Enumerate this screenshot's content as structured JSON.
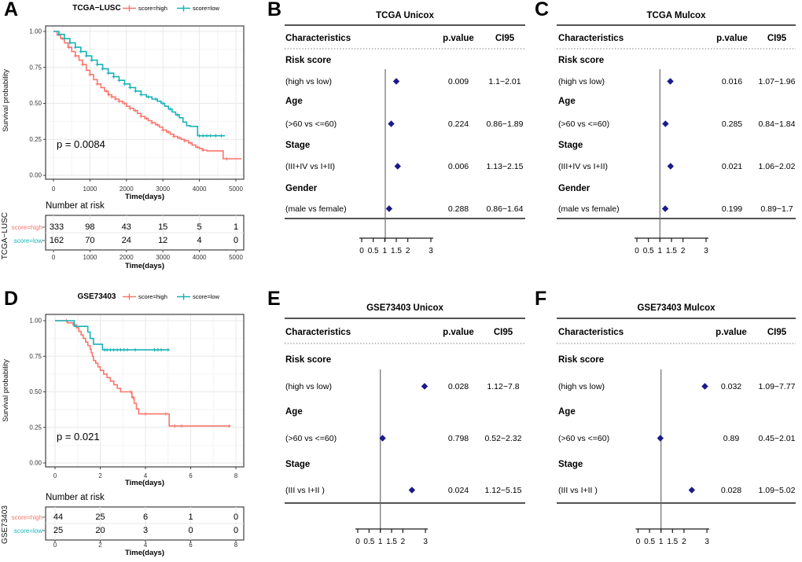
{
  "colors": {
    "score_high": "#F8766D",
    "score_low": "#17B3B7",
    "diamond": "#1A1A8C",
    "grid_major": "#E8E8E8",
    "grid_minor": "#F4F4F4",
    "panel_border": "#4D4D4D",
    "axis_text": "#333333"
  },
  "chart_data": {
    "note": "see km and forest arrays"
  },
  "km": [
    {
      "letter": "A",
      "title": "TCGA−LUSC",
      "legend": [
        {
          "label": "score=high"
        },
        {
          "label": "score=low"
        }
      ],
      "ylabel": "Survival probability",
      "xlabel": "Time(days)",
      "p_label": "p = 0.0084",
      "ytick_labels": [
        "1.00",
        "0.75",
        "0.50",
        "0.25",
        "0.00"
      ],
      "xtick_labels": [
        "0",
        "1000",
        "2000",
        "3000",
        "4000",
        "5000"
      ],
      "series": [
        {
          "name": "score=high",
          "steps": [
            [
              0,
              1
            ],
            [
              100,
              0.975
            ],
            [
              200,
              0.95
            ],
            [
              300,
              0.92
            ],
            [
              400,
              0.89
            ],
            [
              500,
              0.86
            ],
            [
              600,
              0.83
            ],
            [
              700,
              0.8
            ],
            [
              800,
              0.77
            ],
            [
              900,
              0.73
            ],
            [
              1000,
              0.7
            ],
            [
              1100,
              0.665
            ],
            [
              1200,
              0.635
            ],
            [
              1300,
              0.61
            ],
            [
              1400,
              0.585
            ],
            [
              1500,
              0.56
            ],
            [
              1600,
              0.545
            ],
            [
              1700,
              0.53
            ],
            [
              1800,
              0.515
            ],
            [
              1900,
              0.5
            ],
            [
              2000,
              0.48
            ],
            [
              2100,
              0.465
            ],
            [
              2200,
              0.45
            ],
            [
              2300,
              0.43
            ],
            [
              2400,
              0.41
            ],
            [
              2500,
              0.395
            ],
            [
              2600,
              0.38
            ],
            [
              2700,
              0.365
            ],
            [
              2800,
              0.35
            ],
            [
              2900,
              0.335
            ],
            [
              3000,
              0.315
            ],
            [
              3100,
              0.3
            ],
            [
              3200,
              0.285
            ],
            [
              3300,
              0.27
            ],
            [
              3400,
              0.26
            ],
            [
              3500,
              0.25
            ],
            [
              3600,
              0.24
            ],
            [
              3700,
              0.225
            ],
            [
              3800,
              0.21
            ],
            [
              3900,
              0.195
            ],
            [
              4000,
              0.185
            ],
            [
              4100,
              0.175
            ],
            [
              4200,
              0.17
            ],
            [
              4600,
              0.17
            ],
            [
              4650,
              0.115
            ],
            [
              5150,
              0.115
            ]
          ],
          "censors": [
            250,
            420,
            600,
            800,
            1000,
            1200,
            1450,
            1520,
            1600,
            1700,
            1800,
            1950,
            2100,
            2250,
            2400,
            2550,
            2700,
            2850,
            3000,
            3150,
            3300,
            3450,
            3600,
            3750,
            3950,
            4100,
            4750
          ]
        },
        {
          "name": "score=low",
          "steps": [
            [
              0,
              1
            ],
            [
              150,
              0.98
            ],
            [
              300,
              0.95
            ],
            [
              450,
              0.92
            ],
            [
              600,
              0.89
            ],
            [
              750,
              0.86
            ],
            [
              900,
              0.83
            ],
            [
              1050,
              0.8
            ],
            [
              1200,
              0.77
            ],
            [
              1350,
              0.74
            ],
            [
              1500,
              0.71
            ],
            [
              1650,
              0.685
            ],
            [
              1800,
              0.66
            ],
            [
              1950,
              0.635
            ],
            [
              2100,
              0.61
            ],
            [
              2250,
              0.585
            ],
            [
              2400,
              0.56
            ],
            [
              2550,
              0.545
            ],
            [
              2700,
              0.53
            ],
            [
              2850,
              0.515
            ],
            [
              2950,
              0.5
            ],
            [
              3050,
              0.48
            ],
            [
              3150,
              0.46
            ],
            [
              3250,
              0.44
            ],
            [
              3350,
              0.42
            ],
            [
              3450,
              0.4
            ],
            [
              3550,
              0.37
            ],
            [
              3650,
              0.345
            ],
            [
              3750,
              0.34
            ],
            [
              3900,
              0.34
            ],
            [
              3950,
              0.275
            ],
            [
              4700,
              0.275
            ]
          ],
          "censors": [
            150,
            300,
            450,
            600,
            750,
            900,
            1050,
            1200,
            1350,
            1500,
            1650,
            1800,
            1950,
            2100,
            2250,
            2400,
            2600,
            2800,
            3000,
            3200,
            3400,
            4000,
            4100,
            4200,
            4300,
            4450,
            4600
          ]
        }
      ],
      "risk_table": {
        "heading": "Number at risk",
        "group_label": "TCGA−LUSC",
        "xlabel": "Time(days)",
        "rows": [
          {
            "label": "score=high",
            "values": [
              333,
              98,
              43,
              15,
              5,
              1
            ]
          },
          {
            "label": "score=low",
            "values": [
              162,
              70,
              24,
              12,
              4,
              0
            ]
          }
        ]
      }
    },
    {
      "letter": "D",
      "title": "GSE73403",
      "legend": [
        {
          "label": "score=high"
        },
        {
          "label": "score=low"
        }
      ],
      "ylabel": "Survival probability",
      "xlabel": "Time(days)",
      "p_label": "p = 0.021",
      "ytick_labels": [
        "1.00",
        "0.75",
        "0.50",
        "0.25",
        "0.00"
      ],
      "xtick_labels": [
        "0",
        "2",
        "4",
        "6",
        "8"
      ],
      "series": [
        {
          "name": "score=high",
          "steps": [
            [
              0,
              1
            ],
            [
              0.55,
              0.985
            ],
            [
              0.8,
              0.97
            ],
            [
              0.95,
              0.95
            ],
            [
              1.05,
              0.925
            ],
            [
              1.15,
              0.9
            ],
            [
              1.25,
              0.875
            ],
            [
              1.35,
              0.85
            ],
            [
              1.45,
              0.825
            ],
            [
              1.55,
              0.8
            ],
            [
              1.6,
              0.775
            ],
            [
              1.65,
              0.75
            ],
            [
              1.7,
              0.72
            ],
            [
              1.8,
              0.7
            ],
            [
              1.9,
              0.675
            ],
            [
              2.0,
              0.65
            ],
            [
              2.15,
              0.625
            ],
            [
              2.3,
              0.6
            ],
            [
              2.45,
              0.575
            ],
            [
              2.6,
              0.55
            ],
            [
              2.75,
              0.525
            ],
            [
              2.9,
              0.5
            ],
            [
              3.3,
              0.5
            ],
            [
              3.4,
              0.46
            ],
            [
              3.5,
              0.42
            ],
            [
              3.6,
              0.38
            ],
            [
              3.7,
              0.345
            ],
            [
              5.0,
              0.345
            ],
            [
              5.05,
              0.26
            ],
            [
              7.75,
              0.26
            ]
          ],
          "censors": [
            0.5,
            0.85,
            3.35,
            3.45,
            4.0,
            4.9,
            5.3,
            5.6,
            7.7
          ]
        },
        {
          "name": "score=low",
          "steps": [
            [
              0,
              1
            ],
            [
              0.85,
              0.96
            ],
            [
              1.4,
              0.96
            ],
            [
              1.45,
              0.92
            ],
            [
              1.55,
              0.875
            ],
            [
              1.7,
              0.835
            ],
            [
              2.05,
              0.835
            ],
            [
              2.1,
              0.795
            ],
            [
              5.05,
              0.795
            ]
          ],
          "censors": [
            2.2,
            2.3,
            2.45,
            2.6,
            2.75,
            2.9,
            3.05,
            3.2,
            3.55,
            4.4,
            4.55,
            4.7,
            5.0
          ]
        }
      ],
      "risk_table": {
        "heading": "Number at risk",
        "group_label": "GSE73403",
        "xlabel": "Time(days)",
        "rows": [
          {
            "label": "score=high",
            "values": [
              44,
              25,
              6,
              1,
              0
            ]
          },
          {
            "label": "score=low",
            "values": [
              25,
              20,
              3,
              0,
              0
            ]
          }
        ]
      }
    }
  ],
  "forest": [
    {
      "letter": "B",
      "title": "TCGA Unicox",
      "columns": {
        "characteristics": "Characteristics",
        "p": "p.value",
        "ci": "CI95"
      },
      "axis_ticks": [
        "0",
        "0.5",
        "1",
        "1.5",
        "2",
        "3"
      ],
      "rows": [
        {
          "group": "Risk score",
          "item": "(high vs low)",
          "hr": 1.5,
          "p": "0.009",
          "ci": "1.1−2.01"
        },
        {
          "group": "Age",
          "item": "(>60 vs <=60)",
          "hr": 1.28,
          "p": "0.224",
          "ci": "0.86−1.89"
        },
        {
          "group": "Stage",
          "item": "(III+IV vs I+II)",
          "hr": 1.56,
          "p": "0.006",
          "ci": "1.13−2.15"
        },
        {
          "group": "Gender",
          "item": "(male vs female)",
          "hr": 1.19,
          "p": "0.288",
          "ci": "0.86−1.64"
        }
      ]
    },
    {
      "letter": "C",
      "title": "TCGA Mulcox",
      "columns": {
        "characteristics": "Characteristics",
        "p": "p.value",
        "ci": "CI95"
      },
      "axis_ticks": [
        "0",
        "0.5",
        "1",
        "1.5",
        "2",
        "3"
      ],
      "rows": [
        {
          "group": "Risk score",
          "item": "(high vs low)",
          "hr": 1.45,
          "p": "0.016",
          "ci": "1.07−1.96"
        },
        {
          "group": "Age",
          "item": "(>60 vs <=60)",
          "hr": 1.24,
          "p": "0.285",
          "ci": "0.84−1.84"
        },
        {
          "group": "Stage",
          "item": "(III+IV vs I+II)",
          "hr": 1.46,
          "p": "0.021",
          "ci": "1.06−2.02"
        },
        {
          "group": "Gender",
          "item": "(male vs female)",
          "hr": 1.23,
          "p": "0.199",
          "ci": "0.89−1.7"
        }
      ]
    },
    {
      "letter": "E",
      "title": "GSE73403 Unicox",
      "columns": {
        "characteristics": "Characteristics",
        "p": "p.value",
        "ci": "CI95"
      },
      "axis_ticks": [
        "0",
        "0.5",
        "1",
        "1.5",
        "2",
        "3"
      ],
      "rows": [
        {
          "group": "Risk score",
          "item": "(high vs low)",
          "hr": 2.96,
          "p": "0.028",
          "ci": "1.12−7.8"
        },
        {
          "group": "Age",
          "item": "(>60 vs <=60)",
          "hr": 1.1,
          "p": "0.798",
          "ci": "0.52−2.32"
        },
        {
          "group": "Stage",
          "item": "(III vs I+II )",
          "hr": 2.4,
          "p": "0.024",
          "ci": "1.12−5.15"
        }
      ]
    },
    {
      "letter": "F",
      "title": "GSE73403 Mulcox",
      "columns": {
        "characteristics": "Characteristics",
        "p": "p.value",
        "ci": "CI95"
      },
      "axis_ticks": [
        "0",
        "0.5",
        "1",
        "1.5",
        "2",
        "3"
      ],
      "rows": [
        {
          "group": "Risk score",
          "item": "(high vs low)",
          "hr": 2.91,
          "p": "0.032",
          "ci": "1.09−7.77"
        },
        {
          "group": "Age",
          "item": "(>60 vs <=60)",
          "hr": 0.97,
          "p": "0.89",
          "ci": "0.45−2.01"
        },
        {
          "group": "Stage",
          "item": "(III vs I+II )",
          "hr": 2.34,
          "p": "0.028",
          "ci": "1.09−5.02"
        }
      ]
    }
  ]
}
